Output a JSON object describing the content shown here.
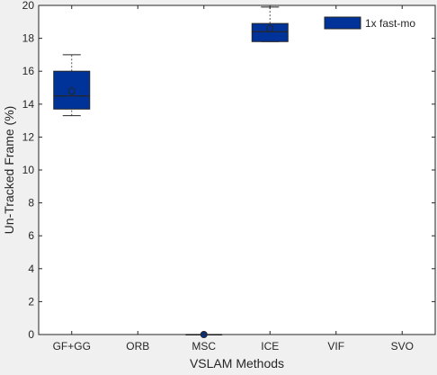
{
  "chart_data": {
    "type": "box",
    "xlabel": "VSLAM Methods",
    "ylabel": "Un-Tracked Frame (%)",
    "ylim": [
      0,
      20
    ],
    "yticks": [
      0,
      2,
      4,
      6,
      8,
      10,
      12,
      14,
      16,
      18,
      20
    ],
    "categories": [
      "GF+GG",
      "ORB",
      "MSC",
      "ICE",
      "VIF",
      "SVO"
    ],
    "grid": false,
    "legend": {
      "position": "top-right",
      "entries": [
        "1x fast-mo"
      ]
    },
    "colors": {
      "box_fill": "#003399",
      "stroke": "#262626",
      "background": "#f0f0f0",
      "plot_bg": "#ffffff"
    },
    "series": [
      {
        "name": "1x fast-mo",
        "boxes": [
          {
            "category": "GF+GG",
            "min": 13.3,
            "q1": 13.7,
            "median": 14.5,
            "q3": 16.0,
            "max": 17.0,
            "mean": 14.8
          },
          {
            "category": "ORB",
            "empty": true
          },
          {
            "category": "MSC",
            "min": 0,
            "q1": 0,
            "median": 0,
            "q3": 0,
            "max": 0,
            "mean": 0
          },
          {
            "category": "ICE",
            "min": 17.8,
            "q1": 17.8,
            "median": 18.4,
            "q3": 18.9,
            "max": 19.9,
            "mean": 18.6
          },
          {
            "category": "VIF",
            "empty": true
          },
          {
            "category": "SVO",
            "empty": true
          }
        ]
      }
    ]
  }
}
